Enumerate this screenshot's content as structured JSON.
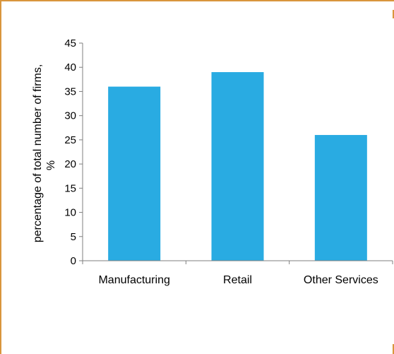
{
  "colors": {
    "bar": "#29abe2",
    "frame": "#d9963c",
    "axis": "#7f7f7f"
  },
  "chart_data": {
    "type": "bar",
    "categories": [
      "Manufacturing",
      "Retail",
      "Other Services"
    ],
    "values": [
      36,
      39,
      26
    ],
    "ylabel_line1": "percentage of total number of firms,",
    "ylabel_line2": "%",
    "ylim": [
      0,
      45
    ],
    "yticks": [
      0,
      5,
      10,
      15,
      20,
      25,
      30,
      35,
      40,
      45
    ],
    "grid": false,
    "legend": "none"
  }
}
